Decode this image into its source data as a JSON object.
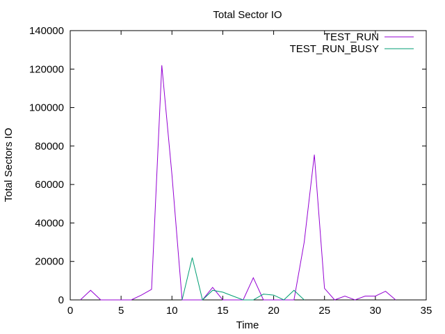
{
  "chart_data": {
    "type": "line",
    "title": "Total Sector IO",
    "xlabel": "Time",
    "ylabel": "Total Sectors IO",
    "xlim": [
      0,
      35
    ],
    "ylim": [
      0,
      140000
    ],
    "xticks": [
      0,
      5,
      10,
      15,
      20,
      25,
      30,
      35
    ],
    "yticks": [
      0,
      20000,
      40000,
      60000,
      80000,
      100000,
      120000,
      140000
    ],
    "grid": false,
    "legend_position": "top-right",
    "series": [
      {
        "name": "TEST_RUN",
        "color": "#9400d3",
        "x": [
          1,
          2,
          3,
          4,
          5,
          6,
          7,
          8,
          9,
          10,
          11,
          12,
          13,
          14,
          15,
          16,
          17,
          18,
          19,
          20,
          21,
          22,
          23,
          24,
          25,
          26,
          27,
          28,
          29,
          30,
          31,
          32
        ],
        "y": [
          0,
          5000,
          0,
          0,
          0,
          0,
          2500,
          5500,
          122000,
          65000,
          0,
          0,
          0,
          6500,
          0,
          0,
          0,
          11500,
          0,
          0,
          0,
          0,
          30000,
          75500,
          6000,
          0,
          2000,
          0,
          2000,
          2000,
          4500,
          0
        ]
      },
      {
        "name": "TEST_RUN_BUSY",
        "color": "#009e73",
        "x": [
          11,
          12,
          13,
          14,
          15,
          16,
          17,
          18,
          19,
          20,
          21,
          22,
          23
        ],
        "y": [
          0,
          22000,
          0,
          5000,
          4000,
          2000,
          0,
          0,
          3000,
          2500,
          0,
          5000,
          0
        ]
      }
    ]
  }
}
